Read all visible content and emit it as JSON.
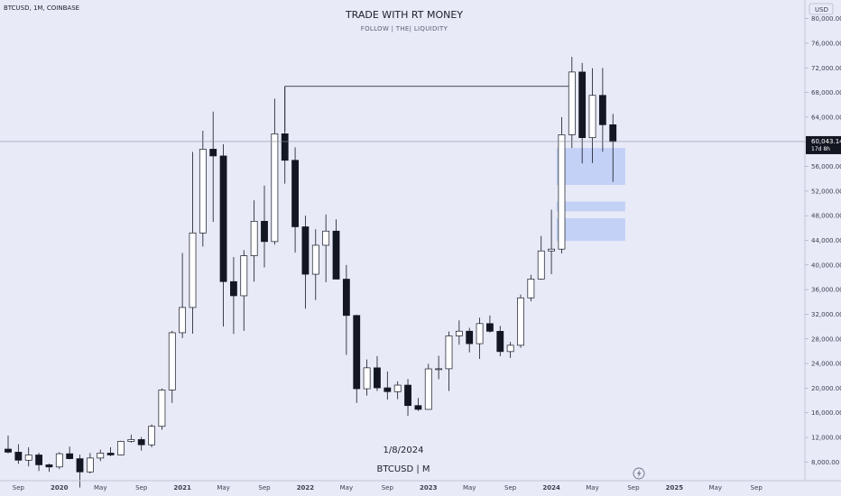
{
  "header": {
    "symbol": "BTCUSD, 1M, COINBASE",
    "title": "TRADE WITH RT MONEY",
    "subtitle": "FOLLOW  |  THE|  LIQUIDITY",
    "currency": "USD"
  },
  "annotations": {
    "date": "1/8/2024",
    "pair": "BTCUSD | M"
  },
  "price_label": {
    "price": "60,043.14",
    "countdown": "17d 8h"
  },
  "colors": {
    "background": "#e8eaf7",
    "up_body": "#ffffff",
    "down_body": "#131722",
    "wick": "#131722",
    "zone": "#b7c8f5"
  },
  "chart_data": {
    "type": "candlestick",
    "x": [
      "2019-08",
      "2019-09",
      "2019-10",
      "2019-11",
      "2019-12",
      "2020-01",
      "2020-02",
      "2020-03",
      "2020-04",
      "2020-05",
      "2020-06",
      "2020-07",
      "2020-08",
      "2020-09",
      "2020-10",
      "2020-11",
      "2020-12",
      "2021-01",
      "2021-02",
      "2021-03",
      "2021-04",
      "2021-05",
      "2021-06",
      "2021-07",
      "2021-08",
      "2021-09",
      "2021-10",
      "2021-11",
      "2021-12",
      "2022-01",
      "2022-02",
      "2022-03",
      "2022-04",
      "2022-05",
      "2022-06",
      "2022-07",
      "2022-08",
      "2022-09",
      "2022-10",
      "2022-11",
      "2022-12",
      "2023-01",
      "2023-02",
      "2023-03",
      "2023-04",
      "2023-05",
      "2023-06",
      "2023-07",
      "2023-08",
      "2023-09",
      "2023-10",
      "2023-11",
      "2023-12",
      "2024-01",
      "2024-02",
      "2024-03",
      "2024-04",
      "2024-05",
      "2024-06",
      "2024-07"
    ],
    "open": [
      10100,
      9600,
      8300,
      9150,
      7550,
      7200,
      9350,
      8550,
      6400,
      8650,
      9450,
      9150,
      11350,
      11650,
      10800,
      13800,
      19700,
      29000,
      33100,
      45200,
      58800,
      57700,
      37300,
      35000,
      41500,
      47100,
      43800,
      61300,
      57000,
      46200,
      38500,
      43200,
      45500,
      37700,
      31800,
      19900,
      23300,
      20050,
      19430,
      20490,
      17170,
      16550,
      23130,
      23150,
      28480,
      29250,
      27220,
      30480,
      29230,
      25940,
      26960,
      34660,
      37710,
      42280,
      42580,
      61150,
      71330,
      60670,
      67540,
      62770
    ],
    "close": [
      9600,
      8300,
      9150,
      7550,
      7200,
      9350,
      8550,
      6400,
      8650,
      9450,
      9150,
      11350,
      11650,
      10800,
      13800,
      19700,
      29000,
      33100,
      45200,
      58800,
      57700,
      37300,
      35000,
      41500,
      47100,
      43800,
      61300,
      57000,
      46200,
      38500,
      43200,
      45500,
      37700,
      31800,
      19900,
      23300,
      20050,
      19430,
      20490,
      17170,
      16550,
      23130,
      23150,
      28480,
      29250,
      27220,
      30480,
      29230,
      25940,
      26960,
      34660,
      37710,
      42280,
      42580,
      61150,
      71330,
      60670,
      67540,
      62770,
      60043
    ],
    "high": [
      12300,
      10900,
      10400,
      9500,
      7750,
      9600,
      10500,
      9200,
      9450,
      10000,
      10400,
      11450,
      12450,
      12050,
      14100,
      19950,
      29300,
      41950,
      58350,
      61800,
      64900,
      59600,
      41300,
      42400,
      50500,
      52900,
      67000,
      69000,
      59100,
      48000,
      45800,
      48200,
      47400,
      40000,
      31900,
      24650,
      25200,
      22700,
      21100,
      21480,
      18400,
      23950,
      25250,
      29200,
      31000,
      29800,
      31450,
      31800,
      30100,
      27500,
      35200,
      38400,
      44700,
      48970,
      64000,
      73800,
      72800,
      71950,
      72000,
      64530
    ],
    "low": [
      9400,
      7700,
      7300,
      6550,
      6400,
      6850,
      8450,
      3850,
      6150,
      8150,
      8950,
      9050,
      11150,
      9850,
      10400,
      13250,
      17600,
      28130,
      28850,
      43000,
      47000,
      30000,
      28800,
      29300,
      37300,
      39600,
      43300,
      53200,
      42000,
      32900,
      34300,
      37200,
      37700,
      25400,
      17600,
      18800,
      19550,
      18150,
      18200,
      15480,
      16280,
      16500,
      21450,
      19550,
      27050,
      25800,
      24750,
      29000,
      25170,
      24900,
      26550,
      34100,
      37600,
      38500,
      41880,
      59000,
      56500,
      56550,
      58400,
      53500
    ],
    "ylim": [
      6000,
      82000
    ],
    "y_ticks": [
      "8,000.00",
      "12,000.00",
      "16,000.00",
      "20,000.00",
      "24,000.00",
      "28,000.00",
      "32,000.00",
      "36,000.00",
      "40,000.00",
      "44,000.00",
      "48,000.00",
      "52,000.00",
      "56,000.00",
      "60,000.00",
      "64,000.00",
      "68,000.00",
      "72,000.00",
      "76,000.00",
      "80,000.00"
    ],
    "x_ticks": [
      "Sep",
      "2020",
      "May",
      "Sep",
      "2021",
      "May",
      "Sep",
      "2022",
      "May",
      "Sep",
      "2023",
      "May",
      "Sep",
      "2024",
      "May",
      "Sep",
      "2025",
      "May",
      "Sep"
    ],
    "current_price": 60043.14,
    "horizontal_line": {
      "from": "2021-11",
      "to": "2024-03",
      "price": 69000
    },
    "zones": [
      {
        "from": "2024-02",
        "to": "2024-08",
        "low": 53000,
        "high": 59000
      },
      {
        "from": "2024-02",
        "to": "2024-08",
        "low": 48700,
        "high": 50300
      },
      {
        "from": "2024-02",
        "to": "2024-08",
        "low": 43900,
        "high": 47600
      }
    ]
  }
}
